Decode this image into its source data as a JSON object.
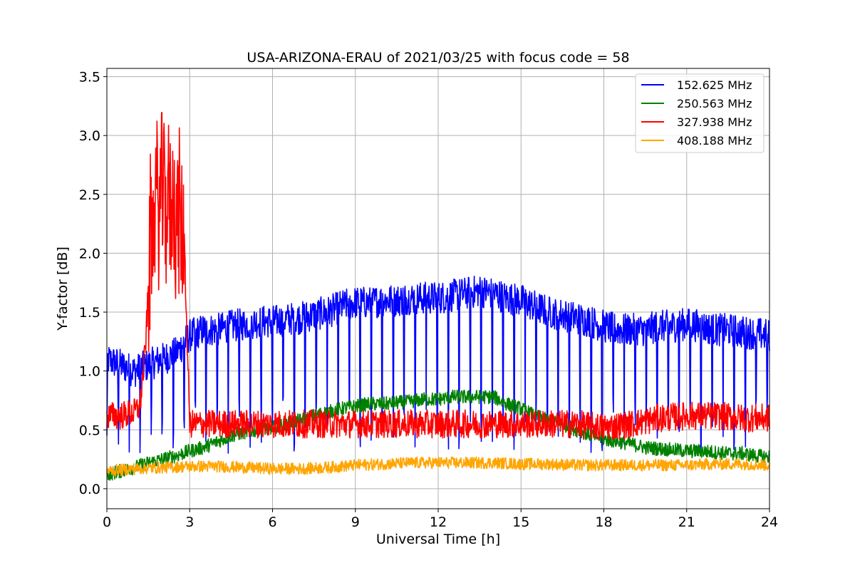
{
  "chart_data": {
    "type": "line",
    "title": "USA-ARIZONA-ERAU of 2021/03/25 with focus code = 58",
    "xlabel": "Universal Time [h]",
    "ylabel": "Y-factor [dB]",
    "xlim": [
      0,
      24
    ],
    "ylim": [
      -0.17,
      3.57
    ],
    "xticks": [
      0,
      3,
      6,
      9,
      12,
      15,
      18,
      21,
      24
    ],
    "xtick_labels": [
      "0",
      "3",
      "6",
      "9",
      "12",
      "15",
      "18",
      "21",
      "24"
    ],
    "yticks": [
      0.0,
      0.5,
      1.0,
      1.5,
      2.0,
      2.5,
      3.0,
      3.5
    ],
    "ytick_labels": [
      "0.0",
      "0.5",
      "1.0",
      "1.5",
      "2.0",
      "2.5",
      "3.0",
      "3.5"
    ],
    "grid": true,
    "legend_position": "top-right",
    "series": [
      {
        "name": "152.625 MHz",
        "color": "#0000ff",
        "x": [
          0,
          0.5,
          1,
          1.5,
          2,
          2.5,
          3,
          3.5,
          4,
          4.5,
          5,
          5.5,
          6,
          6.5,
          7,
          7.5,
          8,
          8.5,
          9,
          9.5,
          10,
          10.5,
          11,
          11.5,
          12,
          12.5,
          13,
          13.5,
          14,
          14.5,
          15,
          15.5,
          16,
          16.5,
          17,
          17.5,
          18,
          18.5,
          19,
          19.5,
          20,
          20.5,
          21,
          21.5,
          22,
          22.5,
          23,
          23.5,
          24
        ],
        "y": [
          1.1,
          1.05,
          1.0,
          1.05,
          1.1,
          1.15,
          1.3,
          1.35,
          1.35,
          1.38,
          1.4,
          1.42,
          1.42,
          1.44,
          1.45,
          1.48,
          1.5,
          1.55,
          1.58,
          1.58,
          1.6,
          1.6,
          1.62,
          1.62,
          1.62,
          1.64,
          1.66,
          1.68,
          1.66,
          1.62,
          1.6,
          1.55,
          1.5,
          1.48,
          1.45,
          1.42,
          1.38,
          1.35,
          1.35,
          1.35,
          1.38,
          1.38,
          1.4,
          1.38,
          1.35,
          1.35,
          1.33,
          1.32,
          1.3
        ],
        "noise": 0.14,
        "dip": true
      },
      {
        "name": "250.563 MHz",
        "color": "#008000",
        "x": [
          0,
          0.5,
          1,
          1.5,
          2,
          2.5,
          3,
          3.5,
          4,
          4.5,
          5,
          5.5,
          6,
          6.5,
          7,
          7.5,
          8,
          8.5,
          9,
          9.5,
          10,
          10.5,
          11,
          11.5,
          12,
          12.5,
          13,
          13.5,
          14,
          14.5,
          15,
          15.5,
          16,
          16.5,
          17,
          17.5,
          18,
          18.5,
          19,
          19.5,
          20,
          20.5,
          21,
          21.5,
          22,
          22.5,
          23,
          23.5,
          24
        ],
        "y": [
          0.12,
          0.15,
          0.18,
          0.22,
          0.25,
          0.28,
          0.32,
          0.35,
          0.4,
          0.45,
          0.48,
          0.5,
          0.52,
          0.55,
          0.58,
          0.62,
          0.65,
          0.68,
          0.7,
          0.72,
          0.72,
          0.73,
          0.74,
          0.76,
          0.76,
          0.78,
          0.78,
          0.78,
          0.78,
          0.72,
          0.68,
          0.62,
          0.58,
          0.55,
          0.5,
          0.46,
          0.42,
          0.4,
          0.38,
          0.35,
          0.34,
          0.33,
          0.32,
          0.32,
          0.31,
          0.3,
          0.3,
          0.28,
          0.27
        ],
        "noise": 0.06,
        "dip": false
      },
      {
        "name": "327.938 MHz",
        "color": "#ff0000",
        "x": [
          0,
          0.5,
          1,
          1.2,
          1.4,
          1.6,
          1.8,
          2.0,
          2.2,
          2.4,
          2.6,
          2.8,
          3,
          3.5,
          4,
          5,
          6,
          7,
          8,
          9,
          10,
          11,
          12,
          13,
          14,
          15,
          16,
          17,
          18,
          19,
          20,
          21,
          22,
          23,
          24
        ],
        "y": [
          0.62,
          0.62,
          0.65,
          0.7,
          1.2,
          2.2,
          2.4,
          2.5,
          2.45,
          2.4,
          2.3,
          2.1,
          0.55,
          0.55,
          0.55,
          0.55,
          0.55,
          0.55,
          0.55,
          0.55,
          0.55,
          0.55,
          0.55,
          0.55,
          0.55,
          0.55,
          0.55,
          0.55,
          0.52,
          0.55,
          0.6,
          0.62,
          0.62,
          0.6,
          0.6
        ],
        "noise": 0.12,
        "dip": false
      },
      {
        "name": "408.188 MHz",
        "color": "#ffa500",
        "x": [
          0,
          1,
          2,
          3,
          4,
          5,
          6,
          7,
          8,
          9,
          10,
          11,
          12,
          13,
          14,
          15,
          16,
          17,
          18,
          19,
          20,
          21,
          22,
          23,
          24
        ],
        "y": [
          0.15,
          0.17,
          0.18,
          0.19,
          0.19,
          0.18,
          0.17,
          0.17,
          0.18,
          0.2,
          0.21,
          0.22,
          0.22,
          0.22,
          0.22,
          0.21,
          0.21,
          0.2,
          0.2,
          0.2,
          0.2,
          0.2,
          0.21,
          0.21,
          0.2
        ],
        "noise": 0.05,
        "dip": false
      }
    ]
  }
}
